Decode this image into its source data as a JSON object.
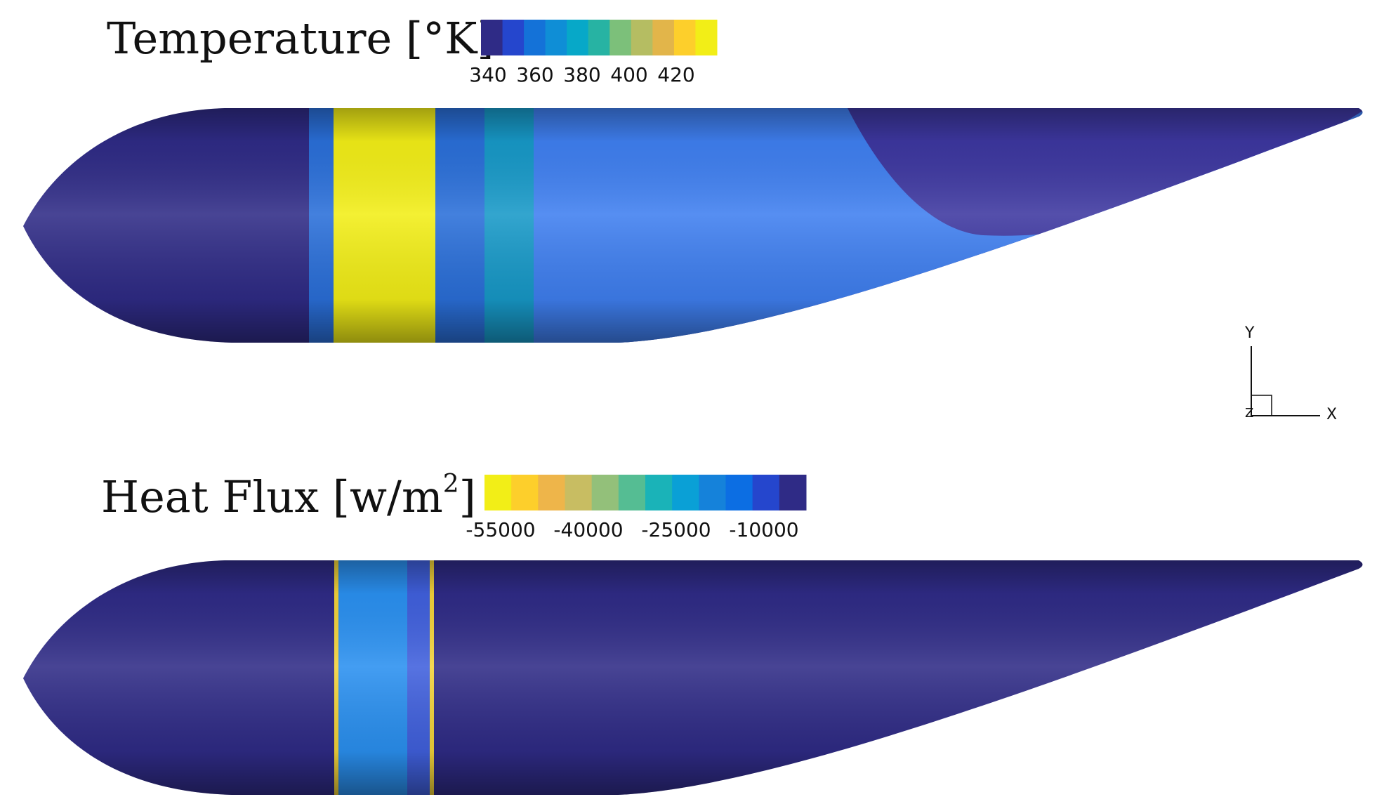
{
  "temperature_panel": {
    "title": "Temperature [°K]",
    "colorbar": {
      "colors": [
        "#2f2b86",
        "#2546cd",
        "#1472d8",
        "#0f8ed6",
        "#07a8c8",
        "#27b3a3",
        "#7cc07a",
        "#b5bd62",
        "#e2b54a",
        "#fdcf2b",
        "#f2ee17"
      ],
      "ticks": [
        "340",
        "360",
        "380",
        "400",
        "420"
      ]
    },
    "surface_colors": {
      "body": "#2f2b86",
      "hot_band": "#f2ee17",
      "cool_band_1": "#2a6fd9",
      "cool_band_2": "#1799c8",
      "wake_region": "#3f7ff0",
      "fin": "#3d37a0"
    }
  },
  "heat_flux_panel": {
    "title_main": "Heat Flux [w/m",
    "title_sup": "2",
    "title_end": "]",
    "colorbar": {
      "colors": [
        "#f2ee17",
        "#fdcf2b",
        "#eeb54a",
        "#c8bd62",
        "#93c07a",
        "#55bd93",
        "#1ab3b8",
        "#0aa0d6",
        "#1582da",
        "#0c6ee3",
        "#2546cd",
        "#2f2b86"
      ],
      "ticks": [
        "-55000",
        "-40000",
        "-25000",
        "-10000"
      ]
    },
    "surface_colors": {
      "body": "#2f2b86",
      "band": "#2a90f0",
      "band_dark": "#4060dd",
      "band_edge": "#f2d23a"
    }
  },
  "axes_triad": {
    "y_label": "Y",
    "x_label": "X",
    "z_label": "Z"
  }
}
